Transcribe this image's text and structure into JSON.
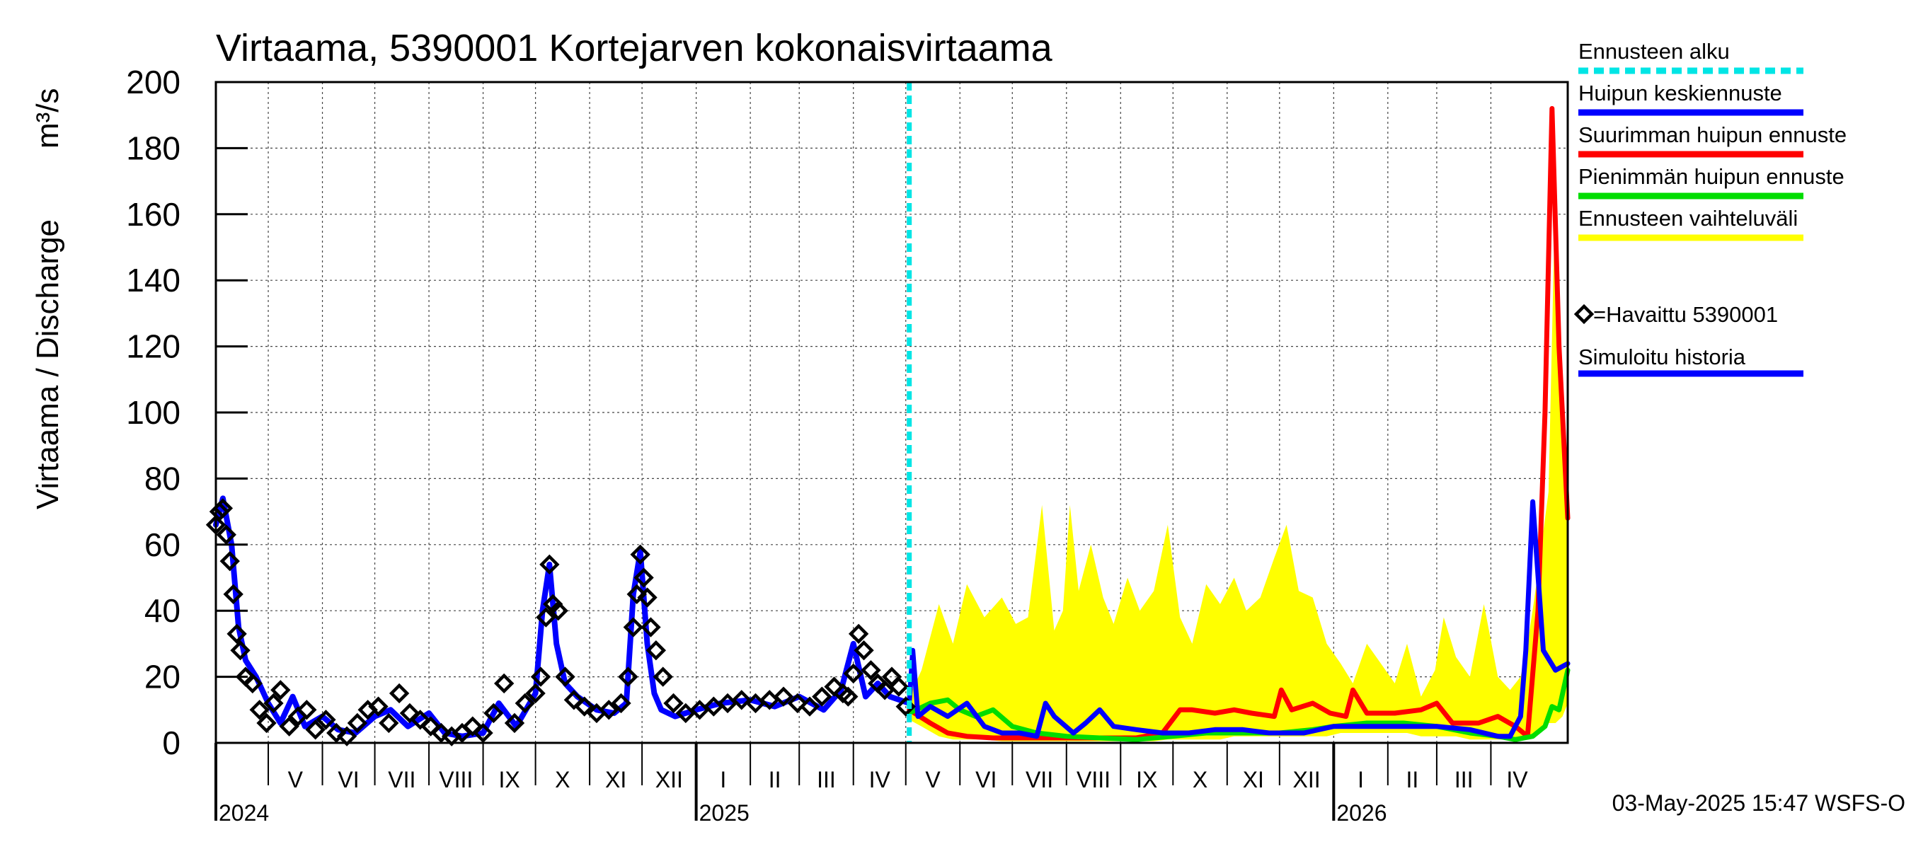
{
  "chart_data": {
    "type": "line",
    "title": "Virtaama, 5390001 Kortejarven kokonaisvirtaama",
    "ylabel": "Virtaama / Discharge",
    "yunit": "m³/s",
    "ylim": [
      0,
      200
    ],
    "yticks": [
      0,
      20,
      40,
      60,
      80,
      100,
      120,
      140,
      160,
      180,
      200
    ],
    "grid": true,
    "legend_position": "right",
    "x_axis": {
      "start": "2024-04-01",
      "end": "2026-05-15",
      "months": [
        {
          "label": "V",
          "year": 2024,
          "m": 5
        },
        {
          "label": "VI",
          "year": 2024,
          "m": 6
        },
        {
          "label": "VII",
          "year": 2024,
          "m": 7
        },
        {
          "label": "VIII",
          "year": 2024,
          "m": 8
        },
        {
          "label": "IX",
          "year": 2024,
          "m": 9
        },
        {
          "label": "X",
          "year": 2024,
          "m": 10
        },
        {
          "label": "XI",
          "year": 2024,
          "m": 11
        },
        {
          "label": "XII",
          "year": 2024,
          "m": 12
        },
        {
          "label": "I",
          "year": 2025,
          "m": 1
        },
        {
          "label": "II",
          "year": 2025,
          "m": 2
        },
        {
          "label": "III",
          "year": 2025,
          "m": 3
        },
        {
          "label": "IV",
          "year": 2025,
          "m": 4
        },
        {
          "label": "V",
          "year": 2025,
          "m": 5
        },
        {
          "label": "VI",
          "year": 2025,
          "m": 6
        },
        {
          "label": "VII",
          "year": 2025,
          "m": 7
        },
        {
          "label": "VIII",
          "year": 2025,
          "m": 8
        },
        {
          "label": "IX",
          "year": 2025,
          "m": 9
        },
        {
          "label": "X",
          "year": 2025,
          "m": 10
        },
        {
          "label": "XI",
          "year": 2025,
          "m": 11
        },
        {
          "label": "XII",
          "year": 2025,
          "m": 12
        },
        {
          "label": "I",
          "year": 2026,
          "m": 1
        },
        {
          "label": "II",
          "year": 2026,
          "m": 2
        },
        {
          "label": "III",
          "year": 2026,
          "m": 3
        },
        {
          "label": "IV",
          "year": 2026,
          "m": 4
        }
      ],
      "years": [
        {
          "label": "2024",
          "date": "2024-04-01"
        },
        {
          "label": "2025",
          "date": "2025-01-01"
        },
        {
          "label": "2026",
          "date": "2026-01-01"
        }
      ]
    },
    "forecast_start": "2025-05-03",
    "series": [
      {
        "name": "Ennusteen vaihteluväli",
        "kind": "band",
        "color": "#ffff00",
        "x": [
          "2025-05-03",
          "2025-05-10",
          "2025-05-20",
          "2025-05-28",
          "2025-06-05",
          "2025-06-15",
          "2025-06-25",
          "2025-07-03",
          "2025-07-10",
          "2025-07-18",
          "2025-07-25",
          "2025-07-30",
          "2025-08-03",
          "2025-08-08",
          "2025-08-15",
          "2025-08-22",
          "2025-08-28",
          "2025-09-05",
          "2025-09-12",
          "2025-09-20",
          "2025-09-28",
          "2025-10-05",
          "2025-10-12",
          "2025-10-20",
          "2025-10-28",
          "2025-11-05",
          "2025-11-12",
          "2025-11-20",
          "2025-11-28",
          "2025-12-05",
          "2025-12-12",
          "2025-12-20",
          "2025-12-28",
          "2026-01-05",
          "2026-01-12",
          "2026-01-20",
          "2026-01-28",
          "2026-02-05",
          "2026-02-12",
          "2026-02-20",
          "2026-02-28",
          "2026-03-05",
          "2026-03-12",
          "2026-03-20",
          "2026-03-28",
          "2026-04-05",
          "2026-04-12",
          "2026-04-18",
          "2026-04-22",
          "2026-04-26",
          "2026-04-30",
          "2026-05-04",
          "2026-05-08",
          "2026-05-12",
          "2026-05-15"
        ],
        "upper": [
          14,
          22,
          42,
          30,
          48,
          38,
          44,
          36,
          38,
          72,
          34,
          40,
          72,
          46,
          60,
          44,
          36,
          50,
          40,
          46,
          66,
          38,
          30,
          48,
          42,
          50,
          40,
          44,
          56,
          66,
          46,
          44,
          30,
          24,
          18,
          30,
          24,
          18,
          30,
          14,
          22,
          38,
          26,
          20,
          42,
          20,
          16,
          20,
          30,
          44,
          60,
          76,
          170,
          110,
          60
        ],
        "lower": [
          7,
          5,
          2,
          1,
          1,
          1,
          0.5,
          0.5,
          0.5,
          0.5,
          0.5,
          0.5,
          0.5,
          0.5,
          0.5,
          0.5,
          0.5,
          0.5,
          0.5,
          0.5,
          1,
          1,
          1,
          1,
          1,
          2,
          2,
          2,
          2,
          2,
          2,
          2,
          2,
          3,
          3,
          3,
          3,
          3,
          3,
          2,
          2,
          2,
          2,
          1,
          1,
          1,
          1,
          1,
          1,
          2,
          4,
          6,
          6,
          8,
          12
        ]
      },
      {
        "name": "Suurimman huipun ennuste",
        "color": "#ff0000",
        "x": [
          "2025-05-03",
          "2025-05-15",
          "2025-05-25",
          "2025-06-05",
          "2025-06-20",
          "2025-07-05",
          "2025-07-20",
          "2025-08-05",
          "2025-08-25",
          "2025-09-10",
          "2025-09-25",
          "2025-10-05",
          "2025-10-12",
          "2025-10-25",
          "2025-11-05",
          "2025-11-15",
          "2025-11-28",
          "2025-12-02",
          "2025-12-08",
          "2025-12-20",
          "2025-12-30",
          "2026-01-08",
          "2026-01-12",
          "2026-01-20",
          "2026-02-05",
          "2026-02-20",
          "2026-03-01",
          "2026-03-10",
          "2026-03-25",
          "2026-04-05",
          "2026-04-15",
          "2026-04-22",
          "2026-04-28",
          "2026-05-02",
          "2026-05-06",
          "2026-05-10",
          "2026-05-15"
        ],
        "values": [
          10,
          6,
          3,
          2,
          1.5,
          1.5,
          1.5,
          1.5,
          1.5,
          1.5,
          3,
          10,
          10,
          9,
          10,
          9,
          8,
          16,
          10,
          12,
          9,
          8,
          16,
          9,
          9,
          10,
          12,
          6,
          6,
          8,
          5,
          2,
          40,
          100,
          192,
          120,
          68
        ]
      },
      {
        "name": "Pienimmän huipun ennuste",
        "color": "#00dd00",
        "x": [
          "2025-05-03",
          "2025-05-15",
          "2025-05-25",
          "2025-06-01",
          "2025-06-10",
          "2025-06-20",
          "2025-07-01",
          "2025-07-15",
          "2025-08-01",
          "2025-08-20",
          "2025-09-10",
          "2025-10-01",
          "2025-10-20",
          "2025-11-10",
          "2025-12-01",
          "2025-12-20",
          "2026-01-01",
          "2026-01-20",
          "2026-02-10",
          "2026-03-01",
          "2026-03-20",
          "2026-04-05",
          "2026-04-15",
          "2026-04-25",
          "2026-05-02",
          "2026-05-06",
          "2026-05-10",
          "2026-05-15"
        ],
        "values": [
          9,
          12,
          13,
          10,
          8,
          10,
          5,
          3,
          2,
          1.5,
          1,
          2,
          3,
          3,
          3,
          4,
          5,
          6,
          6,
          5,
          3,
          2,
          1,
          2,
          5,
          11,
          10,
          22
        ]
      },
      {
        "name": "Huipun keskiennuste",
        "color": "#0000ff",
        "x": [
          "2025-05-03",
          "2025-05-05",
          "2025-05-08",
          "2025-05-15",
          "2025-05-25",
          "2025-06-05",
          "2025-06-15",
          "2025-06-25",
          "2025-07-05",
          "2025-07-15",
          "2025-07-20",
          "2025-07-25",
          "2025-08-05",
          "2025-08-12",
          "2025-08-20",
          "2025-08-28",
          "2025-09-10",
          "2025-09-25",
          "2025-10-10",
          "2025-10-25",
          "2025-11-10",
          "2025-11-25",
          "2025-12-15",
          "2026-01-01",
          "2026-01-20",
          "2026-02-10",
          "2026-03-01",
          "2026-03-20",
          "2026-04-05",
          "2026-04-12",
          "2026-04-18",
          "2026-04-21",
          "2026-04-25",
          "2026-05-01",
          "2026-05-08",
          "2026-05-15"
        ],
        "values": [
          12,
          28,
          8,
          11,
          8,
          12,
          5,
          3,
          3,
          2,
          12,
          8,
          3,
          6,
          10,
          5,
          4,
          3,
          3,
          4,
          4,
          3,
          3,
          5,
          5,
          5,
          5,
          4,
          2,
          2,
          8,
          28,
          73,
          28,
          22,
          24
        ]
      },
      {
        "name": "Simuloitu historia",
        "color": "#0000ff",
        "x": [
          "2024-04-01",
          "2024-04-05",
          "2024-04-10",
          "2024-04-14",
          "2024-04-18",
          "2024-04-24",
          "2024-05-01",
          "2024-05-08",
          "2024-05-15",
          "2024-05-22",
          "2024-06-01",
          "2024-06-10",
          "2024-06-20",
          "2024-07-01",
          "2024-07-10",
          "2024-07-20",
          "2024-08-01",
          "2024-08-10",
          "2024-08-20",
          "2024-09-01",
          "2024-09-10",
          "2024-09-20",
          "2024-10-01",
          "2024-10-05",
          "2024-10-09",
          "2024-10-13",
          "2024-10-18",
          "2024-10-25",
          "2024-11-05",
          "2024-11-15",
          "2024-11-22",
          "2024-11-26",
          "2024-11-30",
          "2024-12-04",
          "2024-12-08",
          "2024-12-12",
          "2024-12-20",
          "2025-01-01",
          "2025-01-15",
          "2025-02-01",
          "2025-02-15",
          "2025-03-01",
          "2025-03-15",
          "2025-03-25",
          "2025-04-01",
          "2025-04-08",
          "2025-04-15",
          "2025-04-22",
          "2025-05-03"
        ],
        "values": [
          66,
          74,
          60,
          35,
          25,
          20,
          12,
          6,
          14,
          5,
          8,
          4,
          3,
          8,
          10,
          5,
          9,
          3,
          2,
          3,
          12,
          5,
          15,
          40,
          54,
          30,
          18,
          14,
          10,
          9,
          12,
          45,
          58,
          30,
          15,
          10,
          8,
          10,
          12,
          13,
          11,
          14,
          10,
          16,
          30,
          14,
          18,
          14,
          12
        ]
      },
      {
        "name": "Havaittu 5390001",
        "kind": "markers",
        "color": "#000000",
        "x": [
          "2024-04-01",
          "2024-04-03",
          "2024-04-05",
          "2024-04-07",
          "2024-04-09",
          "2024-04-11",
          "2024-04-13",
          "2024-04-15",
          "2024-04-18",
          "2024-04-22",
          "2024-04-26",
          "2024-04-30",
          "2024-05-04",
          "2024-05-08",
          "2024-05-13",
          "2024-05-18",
          "2024-05-23",
          "2024-05-28",
          "2024-06-03",
          "2024-06-09",
          "2024-06-15",
          "2024-06-21",
          "2024-06-27",
          "2024-07-03",
          "2024-07-09",
          "2024-07-15",
          "2024-07-21",
          "2024-07-27",
          "2024-08-02",
          "2024-08-08",
          "2024-08-14",
          "2024-08-20",
          "2024-08-26",
          "2024-09-01",
          "2024-09-07",
          "2024-09-13",
          "2024-09-19",
          "2024-09-25",
          "2024-10-01",
          "2024-10-04",
          "2024-10-07",
          "2024-10-09",
          "2024-10-11",
          "2024-10-14",
          "2024-10-18",
          "2024-10-23",
          "2024-10-29",
          "2024-11-05",
          "2024-11-12",
          "2024-11-19",
          "2024-11-23",
          "2024-11-26",
          "2024-11-28",
          "2024-11-30",
          "2024-12-02",
          "2024-12-04",
          "2024-12-06",
          "2024-12-09",
          "2024-12-13",
          "2024-12-19",
          "2024-12-26",
          "2025-01-03",
          "2025-01-11",
          "2025-01-19",
          "2025-01-27",
          "2025-02-04",
          "2025-02-12",
          "2025-02-20",
          "2025-02-28",
          "2025-03-07",
          "2025-03-14",
          "2025-03-21",
          "2025-03-26",
          "2025-03-29",
          "2025-04-01",
          "2025-04-04",
          "2025-04-07",
          "2025-04-11",
          "2025-04-15",
          "2025-04-19",
          "2025-04-23",
          "2025-04-27",
          "2025-05-01"
        ],
        "values": [
          66,
          70,
          71,
          63,
          55,
          45,
          33,
          28,
          20,
          18,
          10,
          6,
          12,
          16,
          5,
          8,
          10,
          4,
          7,
          3,
          2,
          6,
          10,
          11,
          6,
          15,
          9,
          7,
          5,
          3,
          2,
          3,
          5,
          3,
          9,
          18,
          6,
          12,
          15,
          20,
          38,
          54,
          42,
          40,
          20,
          13,
          11,
          9,
          10,
          12,
          20,
          35,
          45,
          57,
          50,
          44,
          35,
          28,
          20,
          12,
          9,
          10,
          11,
          12,
          13,
          12,
          13,
          14,
          12,
          11,
          14,
          17,
          15,
          14,
          21,
          33,
          28,
          22,
          18,
          16,
          20,
          17,
          11
        ]
      }
    ],
    "legend": [
      {
        "label": "Ennusteen alku",
        "color": "#00e5e5",
        "style": "dashed"
      },
      {
        "label": "Huipun keskiennuste",
        "color": "#0000ff",
        "style": "solid"
      },
      {
        "label": "Suurimman huipun ennuste",
        "color": "#ff0000",
        "style": "solid"
      },
      {
        "label": "Pienimmän huipun ennuste",
        "color": "#00dd00",
        "style": "solid"
      },
      {
        "label": "Ennusteen vaihteluväli",
        "color": "#ffff00",
        "style": "solid"
      },
      {
        "label": "=Havaittu 5390001",
        "color": "#000000",
        "style": "marker"
      },
      {
        "label": "Simuloitu historia",
        "color": "#0000ff",
        "style": "solid"
      }
    ]
  },
  "footer": {
    "timestamp": "03-May-2025 15:47 WSFS-O"
  }
}
